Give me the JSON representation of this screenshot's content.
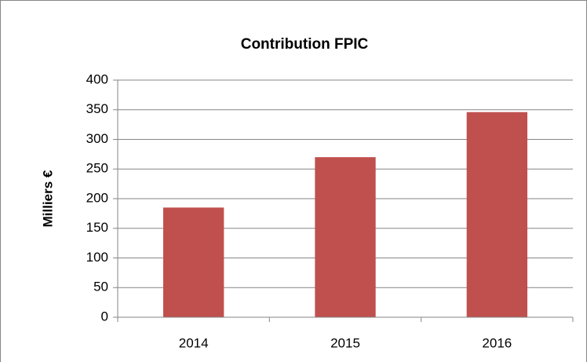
{
  "chart_data": {
    "type": "bar",
    "title": "Contribution FPIC",
    "y_label": "Milliers €",
    "categories": [
      "2014",
      "2015",
      "2016"
    ],
    "values": [
      185,
      270,
      346
    ],
    "color": "#c0504d",
    "ylim": [
      0,
      400
    ],
    "yticks": [
      0,
      50,
      100,
      150,
      200,
      250,
      300,
      350,
      400
    ],
    "grid": true
  }
}
